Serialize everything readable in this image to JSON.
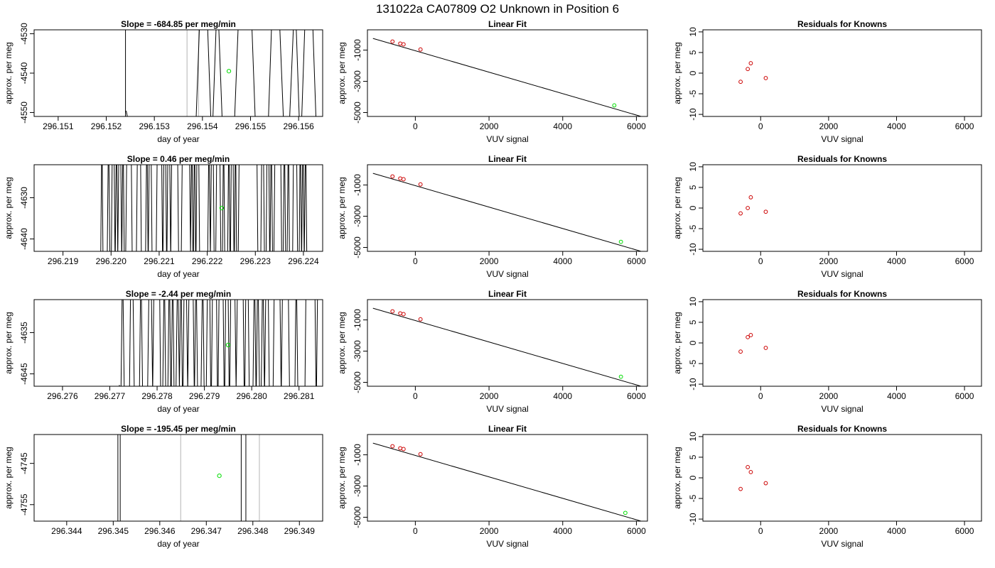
{
  "main_title": "131022a      CA07809   O2 Unknown in Position  6",
  "colors": {
    "trace": "#000000",
    "gray_line": "#c0c0c0",
    "known_point": "#cc0000",
    "unknown_point": "#00dd00"
  },
  "chart_data": [
    {
      "type": "line",
      "title": "Slope =  -684.85  per meg/min",
      "xlabel": "day of year",
      "ylabel": "approx. per meg",
      "xlim": [
        296.1505,
        296.1565
      ],
      "ylim": [
        -4551,
        -4529
      ],
      "x_ticks": [
        "296.151",
        "296.152",
        "296.153",
        "296.154",
        "296.155",
        "296.156"
      ],
      "y_ticks": [
        "-4530",
        "-4540",
        "-4550"
      ],
      "segments": [
        [
          296.1524,
          296.1524
        ],
        [
          296.15385,
          296.1565
        ]
      ],
      "gray_lines": [
        296.15368,
        296.15392
      ],
      "unknown_point": {
        "x": 296.15455,
        "y": -4539.5
      },
      "seed": 11,
      "density": 45
    },
    {
      "type": "scatter",
      "title": "Linear Fit",
      "xlabel": "VUV signal",
      "ylabel": "approx. per meg",
      "xlim": [
        -1300,
        6300
      ],
      "ylim": [
        -5250,
        300
      ],
      "x_ticks": [
        "0",
        "2000",
        "4000",
        "6000"
      ],
      "y_ticks": [
        "-1000",
        "-3000",
        "-5000"
      ],
      "fit_line": {
        "x": [
          -1150,
          6200
        ],
        "y": [
          -250,
          -5300
        ]
      },
      "known_points": [
        {
          "x": -620,
          "y": -450
        },
        {
          "x": -410,
          "y": -580
        },
        {
          "x": -320,
          "y": -630
        },
        {
          "x": 140,
          "y": -960
        }
      ],
      "unknown_point": {
        "x": 5400,
        "y": -4540
      }
    },
    {
      "type": "scatter",
      "title": "Residuals for Knowns",
      "xlabel": "VUV signal",
      "ylabel": "approx. per meg",
      "xlim": [
        -1700,
        6500
      ],
      "ylim": [
        -10.5,
        10.5
      ],
      "x_ticks": [
        "0",
        "2000",
        "4000",
        "6000"
      ],
      "y_ticks": [
        "10",
        "5",
        "0",
        "-5",
        "-10"
      ],
      "points": [
        {
          "x": -590,
          "y": -2.1
        },
        {
          "x": -380,
          "y": 1.0
        },
        {
          "x": -290,
          "y": 2.4
        },
        {
          "x": 150,
          "y": -1.2
        }
      ]
    },
    {
      "type": "line",
      "title": "Slope =  0.46  per meg/min",
      "xlabel": "day of year",
      "ylabel": "approx. per meg",
      "xlim": [
        296.2184,
        296.2244
      ],
      "ylim": [
        -4643,
        -4622
      ],
      "x_ticks": [
        "296.219",
        "296.220",
        "296.221",
        "296.222",
        "296.223",
        "296.224"
      ],
      "y_ticks": [
        "-4630",
        "-4640"
      ],
      "segments": [
        [
          296.2197,
          296.2241
        ]
      ],
      "gray_lines": [],
      "unknown_point": {
        "x": 296.2223,
        "y": -4632.5
      },
      "seed": 23,
      "density": 190
    },
    {
      "type": "scatter",
      "title": "Linear Fit",
      "xlabel": "VUV signal",
      "ylabel": "approx. per meg",
      "xlim": [
        -1300,
        6300
      ],
      "ylim": [
        -5250,
        300
      ],
      "x_ticks": [
        "0",
        "2000",
        "4000",
        "6000"
      ],
      "y_ticks": [
        "-1000",
        "-3000",
        "-5000"
      ],
      "fit_line": {
        "x": [
          -1150,
          6200
        ],
        "y": [
          -250,
          -5300
        ]
      },
      "known_points": [
        {
          "x": -620,
          "y": -450
        },
        {
          "x": -410,
          "y": -580
        },
        {
          "x": -320,
          "y": -630
        },
        {
          "x": 140,
          "y": -960
        }
      ],
      "unknown_point": {
        "x": 5580,
        "y": -4640
      }
    },
    {
      "type": "scatter",
      "title": "Residuals for Knowns",
      "xlabel": "VUV signal",
      "ylabel": "approx. per meg",
      "xlim": [
        -1700,
        6500
      ],
      "ylim": [
        -10.5,
        10.5
      ],
      "x_ticks": [
        "0",
        "2000",
        "4000",
        "6000"
      ],
      "y_ticks": [
        "10",
        "5",
        "0",
        "-5",
        "-10"
      ],
      "points": [
        {
          "x": -590,
          "y": -1.3
        },
        {
          "x": -380,
          "y": 0.0
        },
        {
          "x": -290,
          "y": 2.6
        },
        {
          "x": 150,
          "y": -0.9
        }
      ]
    },
    {
      "type": "line",
      "title": "Slope =  -2.44  per meg/min",
      "xlabel": "day of year",
      "ylabel": "approx. per meg",
      "xlim": [
        296.2754,
        296.2815
      ],
      "ylim": [
        -4648,
        -4627
      ],
      "x_ticks": [
        "296.276",
        "296.277",
        "296.278",
        "296.279",
        "296.280",
        "296.281"
      ],
      "y_ticks": [
        "-4635",
        "-4645"
      ],
      "segments": [
        [
          296.2772,
          296.2814
        ]
      ],
      "gray_lines": [],
      "unknown_point": {
        "x": 296.2795,
        "y": -4638
      },
      "seed": 37,
      "density": 150
    },
    {
      "type": "scatter",
      "title": "Linear Fit",
      "xlabel": "VUV signal",
      "ylabel": "approx. per meg",
      "xlim": [
        -1300,
        6300
      ],
      "ylim": [
        -5250,
        300
      ],
      "x_ticks": [
        "0",
        "2000",
        "4000",
        "6000"
      ],
      "y_ticks": [
        "-1000",
        "-3000",
        "-5000"
      ],
      "fit_line": {
        "x": [
          -1150,
          6200
        ],
        "y": [
          -250,
          -5300
        ]
      },
      "known_points": [
        {
          "x": -620,
          "y": -450
        },
        {
          "x": -410,
          "y": -580
        },
        {
          "x": -320,
          "y": -630
        },
        {
          "x": 140,
          "y": -960
        }
      ],
      "unknown_point": {
        "x": 5580,
        "y": -4640
      }
    },
    {
      "type": "scatter",
      "title": "Residuals for Knowns",
      "xlabel": "VUV signal",
      "ylabel": "approx. per meg",
      "xlim": [
        -1700,
        6500
      ],
      "ylim": [
        -10.5,
        10.5
      ],
      "x_ticks": [
        "0",
        "2000",
        "4000",
        "6000"
      ],
      "y_ticks": [
        "10",
        "5",
        "0",
        "-5",
        "-10"
      ],
      "points": [
        {
          "x": -590,
          "y": -2.1
        },
        {
          "x": -380,
          "y": 1.4
        },
        {
          "x": -290,
          "y": 1.9
        },
        {
          "x": 150,
          "y": -1.2
        }
      ]
    },
    {
      "type": "line",
      "title": "Slope =  -195.45  per meg/min",
      "xlabel": "day of year",
      "ylabel": "approx. per meg",
      "xlim": [
        296.3433,
        296.3495
      ],
      "ylim": [
        -4759,
        -4738
      ],
      "x_ticks": [
        "296.344",
        "296.345",
        "296.346",
        "296.347",
        "296.348",
        "296.349"
      ],
      "y_ticks": [
        "-4745",
        "-4755"
      ],
      "segments": [
        [
          296.3451,
          296.3451
        ],
        [
          296.34515,
          296.34515
        ],
        [
          296.34775,
          296.34775
        ],
        [
          296.34785,
          296.34785
        ]
      ],
      "gray_lines": [
        296.34645,
        296.34814
      ],
      "unknown_point": {
        "x": 296.34728,
        "y": -4748
      },
      "seed": 51,
      "density": 0
    },
    {
      "type": "scatter",
      "title": "Linear Fit",
      "xlabel": "VUV signal",
      "ylabel": "approx. per meg",
      "xlim": [
        -1300,
        6300
      ],
      "ylim": [
        -5250,
        300
      ],
      "x_ticks": [
        "0",
        "2000",
        "4000",
        "6000"
      ],
      "y_ticks": [
        "-1000",
        "-3000",
        "-5000"
      ],
      "fit_line": {
        "x": [
          -1150,
          6200
        ],
        "y": [
          -250,
          -5300
        ]
      },
      "known_points": [
        {
          "x": -620,
          "y": -450
        },
        {
          "x": -410,
          "y": -580
        },
        {
          "x": -320,
          "y": -630
        },
        {
          "x": 140,
          "y": -960
        }
      ],
      "unknown_point": {
        "x": 5700,
        "y": -4720
      }
    },
    {
      "type": "scatter",
      "title": "Residuals for Knowns",
      "xlabel": "VUV signal",
      "ylabel": "approx. per meg",
      "xlim": [
        -1700,
        6500
      ],
      "ylim": [
        -10.5,
        10.5
      ],
      "x_ticks": [
        "0",
        "2000",
        "4000",
        "6000"
      ],
      "y_ticks": [
        "10",
        "5",
        "0",
        "-5",
        "-10"
      ],
      "points": [
        {
          "x": -590,
          "y": -2.7
        },
        {
          "x": -380,
          "y": 2.6
        },
        {
          "x": -290,
          "y": 1.4
        },
        {
          "x": 150,
          "y": -1.3
        }
      ]
    }
  ]
}
